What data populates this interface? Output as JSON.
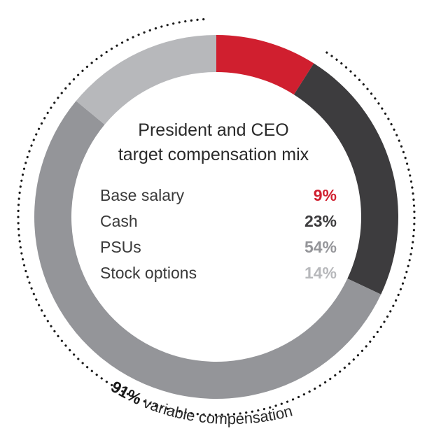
{
  "chart_data": {
    "type": "pie",
    "style": "donut",
    "title_line1": "President and CEO",
    "title_line2": "target compensation mix",
    "categories": [
      "Base salary",
      "Cash",
      "PSUs",
      "Stock options"
    ],
    "values": [
      9,
      23,
      54,
      14
    ],
    "value_labels": [
      "9%",
      "23%",
      "54%",
      "14%"
    ],
    "colors": [
      "#d01f2f",
      "#3d3c3e",
      "#949599",
      "#b7b8bb"
    ],
    "legend_placement": "center",
    "annotation": {
      "bold_value": "91%",
      "text": "variable compensation",
      "spans": [
        "Cash",
        "PSUs",
        "Stock options"
      ]
    }
  }
}
